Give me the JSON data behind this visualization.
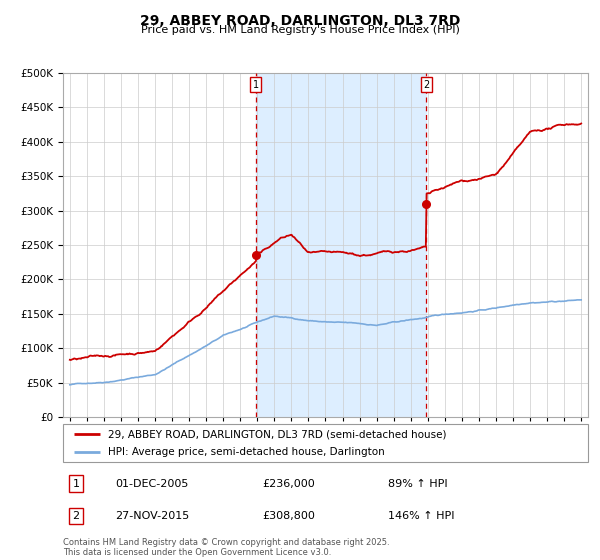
{
  "title": "29, ABBEY ROAD, DARLINGTON, DL3 7RD",
  "subtitle": "Price paid vs. HM Land Registry's House Price Index (HPI)",
  "legend_line1": "29, ABBEY ROAD, DARLINGTON, DL3 7RD (semi-detached house)",
  "legend_line2": "HPI: Average price, semi-detached house, Darlington",
  "annotation1_date": "01-DEC-2005",
  "annotation1_price": "£236,000",
  "annotation1_hpi": "89% ↑ HPI",
  "annotation2_date": "27-NOV-2015",
  "annotation2_price": "£308,800",
  "annotation2_hpi": "146% ↑ HPI",
  "footnote": "Contains HM Land Registry data © Crown copyright and database right 2025.\nThis data is licensed under the Open Government Licence v3.0.",
  "red_color": "#cc0000",
  "blue_color": "#7aaadd",
  "shading_color": "#ddeeff",
  "ylim": [
    0,
    500000
  ],
  "yticks": [
    0,
    50000,
    100000,
    150000,
    200000,
    250000,
    300000,
    350000,
    400000,
    450000,
    500000
  ],
  "sale1_x": 2005.92,
  "sale1_y": 236000,
  "sale2_x": 2015.9,
  "sale2_y": 308800,
  "xmin": 1994.6,
  "xmax": 2025.4
}
